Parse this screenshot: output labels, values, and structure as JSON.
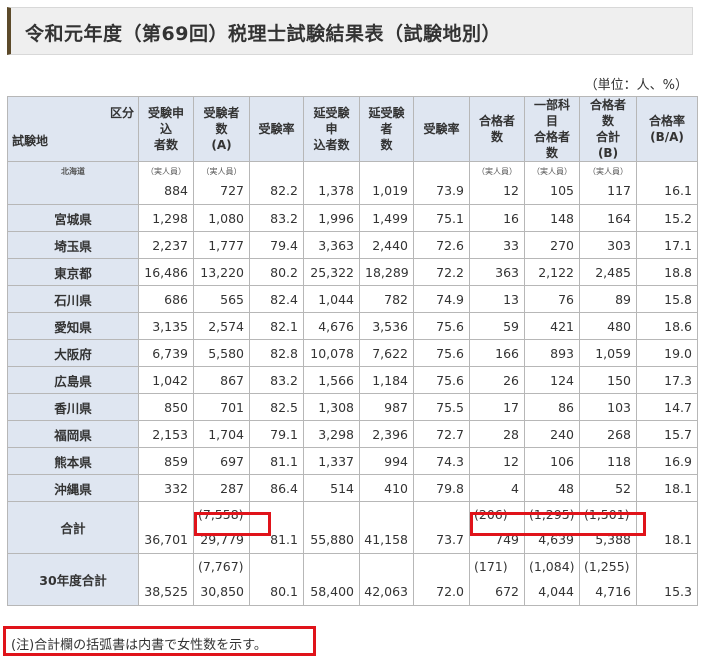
{
  "title": "令和元年度（第69回）税理士試験結果表（試験地別）",
  "unit": "（単位：人、%）",
  "header": {
    "corner_top": "区分",
    "corner_bottom": "試験地",
    "cols": [
      "受験申込者数",
      "受験者数(A)",
      "受験率",
      "延受験申込者数",
      "延受験者数",
      "受験率",
      "合格者数",
      "一部科目合格者数",
      "合格者数合計(B)",
      "合格率(B/A)"
    ]
  },
  "unit_note": "（実人員）",
  "rows": [
    {
      "name": "北海道",
      "v": [
        "884",
        "727",
        "82.2",
        "1,378",
        "1,019",
        "73.9",
        "12",
        "105",
        "117",
        "16.1"
      ]
    },
    {
      "name": "宮城県",
      "v": [
        "1,298",
        "1,080",
        "83.2",
        "1,996",
        "1,499",
        "75.1",
        "16",
        "148",
        "164",
        "15.2"
      ]
    },
    {
      "name": "埼玉県",
      "v": [
        "2,237",
        "1,777",
        "79.4",
        "3,363",
        "2,440",
        "72.6",
        "33",
        "270",
        "303",
        "17.1"
      ]
    },
    {
      "name": "東京都",
      "v": [
        "16,486",
        "13,220",
        "80.2",
        "25,322",
        "18,289",
        "72.2",
        "363",
        "2,122",
        "2,485",
        "18.8"
      ]
    },
    {
      "name": "石川県",
      "v": [
        "686",
        "565",
        "82.4",
        "1,044",
        "782",
        "74.9",
        "13",
        "76",
        "89",
        "15.8"
      ]
    },
    {
      "name": "愛知県",
      "v": [
        "3,135",
        "2,574",
        "82.1",
        "4,676",
        "3,536",
        "75.6",
        "59",
        "421",
        "480",
        "18.6"
      ]
    },
    {
      "name": "大阪府",
      "v": [
        "6,739",
        "5,580",
        "82.8",
        "10,078",
        "7,622",
        "75.6",
        "166",
        "893",
        "1,059",
        "19.0"
      ]
    },
    {
      "name": "広島県",
      "v": [
        "1,042",
        "867",
        "83.2",
        "1,566",
        "1,184",
        "75.6",
        "26",
        "124",
        "150",
        "17.3"
      ]
    },
    {
      "name": "香川県",
      "v": [
        "850",
        "701",
        "82.5",
        "1,308",
        "987",
        "75.5",
        "17",
        "86",
        "103",
        "14.7"
      ]
    },
    {
      "name": "福岡県",
      "v": [
        "2,153",
        "1,704",
        "79.1",
        "3,298",
        "2,396",
        "72.7",
        "28",
        "240",
        "268",
        "15.7"
      ]
    },
    {
      "name": "熊本県",
      "v": [
        "859",
        "697",
        "81.1",
        "1,337",
        "994",
        "74.3",
        "12",
        "106",
        "118",
        "16.9"
      ]
    },
    {
      "name": "沖縄県",
      "v": [
        "332",
        "287",
        "86.4",
        "514",
        "410",
        "79.8",
        "4",
        "48",
        "52",
        "18.1"
      ]
    }
  ],
  "total": {
    "name": "合計",
    "v": [
      "36,701",
      "29,779",
      "81.1",
      "55,880",
      "41,158",
      "73.7",
      "749",
      "4,639",
      "5,388",
      "18.1"
    ],
    "female": [
      "",
      "(7,558)",
      "",
      "",
      "",
      "",
      "(206)",
      "(1,295)",
      "(1,501)",
      ""
    ]
  },
  "prev": {
    "name": "30年度合計",
    "v": [
      "38,525",
      "30,850",
      "80.1",
      "58,400",
      "42,063",
      "72.0",
      "672",
      "4,044",
      "4,716",
      "15.3"
    ],
    "female": [
      "",
      "(7,767)",
      "",
      "",
      "",
      "",
      "(171)",
      "(1,084)",
      "(1,255)",
      ""
    ]
  },
  "note": "(注)合計欄の括弧書は内書で女性数を示す。"
}
